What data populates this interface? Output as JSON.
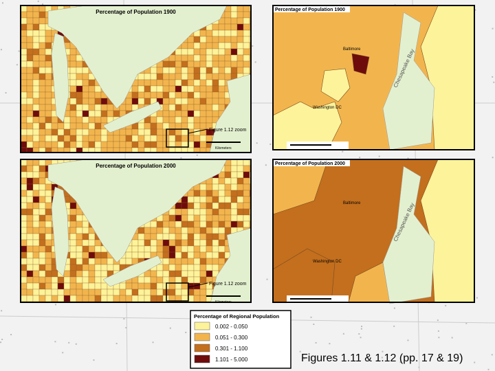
{
  "maps": [
    {
      "title": "Percentage of Population 1900",
      "zoom_label": "Figure 1.12 zoom",
      "scale_label": "Kilometers"
    },
    {
      "title": "Percentage of Population 2000",
      "zoom_label": "Figure 1.12 zoom",
      "scale_label": "Kilometers"
    }
  ],
  "zooms": [
    {
      "title": "Percentage of Population 1900",
      "labels": [
        "Baltimore",
        "Washington DC",
        "Chesapeake Bay"
      ]
    },
    {
      "title": "Percentage of Population 2000",
      "labels": [
        "Baltimore",
        "Washington DC",
        "Chesapeake Bay"
      ]
    }
  ],
  "legend": {
    "title": "Percentage of Regional Population",
    "items": [
      {
        "label": "0.002 - 0.050",
        "color": "#fdf39a"
      },
      {
        "label": "0.051 - 0.300",
        "color": "#f2b54e"
      },
      {
        "label": "0.301 - 1.100",
        "color": "#c36f1e"
      },
      {
        "label": "1.101 - 5.000",
        "color": "#6e0c0c"
      }
    ]
  },
  "caption": "Figures 1.11 & 1.12 (pp. 17 & 19)"
}
